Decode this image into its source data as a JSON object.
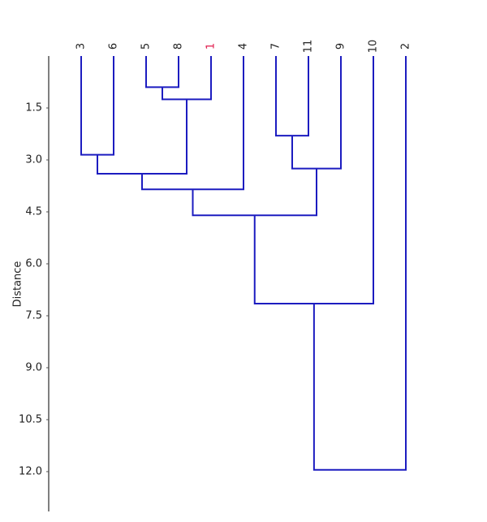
{
  "chart_data": {
    "type": "dendrogram",
    "y_label": "Distance",
    "leaves": [
      "3",
      "6",
      "5",
      "8",
      "1",
      "4",
      "7",
      "11",
      "9",
      "10",
      "2"
    ],
    "leaf_label_colors": [
      "#222222",
      "#222222",
      "#222222",
      "#222222",
      "#e0194b",
      "#222222",
      "#222222",
      "#222222",
      "#222222",
      "#222222",
      "#222222"
    ],
    "color": "#1c1cc0",
    "merges": [
      {
        "children": [
          2,
          3
        ],
        "height": 0.9
      },
      {
        "children": [
          11,
          4
        ],
        "height": 1.25
      },
      {
        "children": [
          6,
          7
        ],
        "height": 2.3
      },
      {
        "children": [
          0,
          1
        ],
        "height": 2.85
      },
      {
        "children": [
          13,
          8
        ],
        "height": 3.25
      },
      {
        "children": [
          14,
          12
        ],
        "height": 3.4
      },
      {
        "children": [
          16,
          5
        ],
        "height": 3.85
      },
      {
        "children": [
          17,
          15
        ],
        "height": 4.6
      },
      {
        "children": [
          18,
          9
        ],
        "height": 7.15
      },
      {
        "children": [
          19,
          10
        ],
        "height": 11.95
      }
    ],
    "ylim": [
      0,
      13.15
    ],
    "yticks": [
      1.5,
      {
        "value": 3,
        "label": "3.0"
      },
      4.5,
      {
        "value": 6,
        "label": "6.0"
      },
      7.5,
      {
        "value": 9,
        "label": "9.0"
      },
      10.5,
      {
        "value": 12,
        "label": "12.0"
      }
    ]
  }
}
